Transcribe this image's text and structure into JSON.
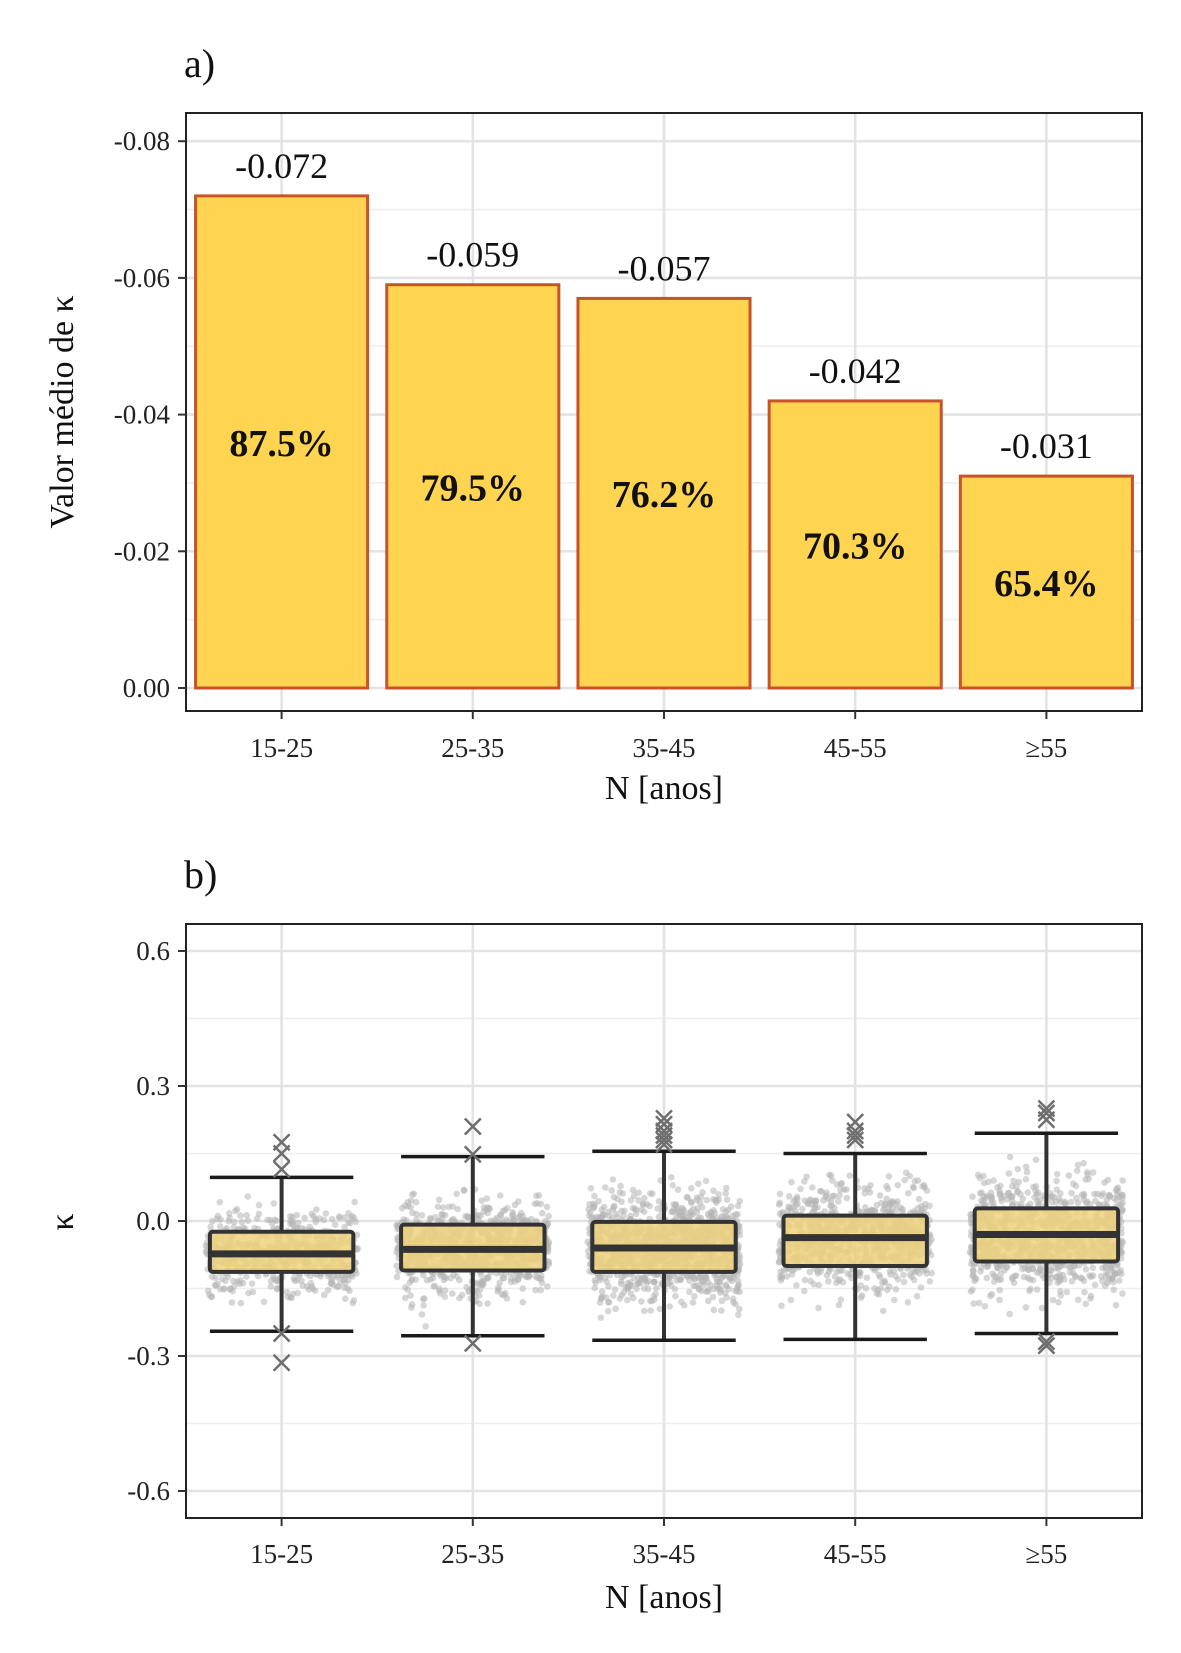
{
  "colors": {
    "bar_fill": "#FFD451",
    "bar_stroke": "#C8532A",
    "box_fill": "#F0D27C",
    "box_stroke": "#333333",
    "jitter": "#B5B5B5",
    "outlier": "#6E6E6E"
  },
  "chart_data": [
    {
      "panel": "a)",
      "type": "bar",
      "categories": [
        "15-25",
        "25-35",
        "35-45",
        "45-55",
        "≥55"
      ],
      "values": [
        -0.072,
        -0.059,
        -0.057,
        -0.042,
        -0.031
      ],
      "value_labels": [
        "-0.072",
        "-0.059",
        "-0.057",
        "-0.042",
        "-0.031"
      ],
      "percent_labels": [
        "87.5%",
        "79.5%",
        "76.2%",
        "70.3%",
        "65.4%"
      ],
      "xlabel": "N [anos]",
      "ylabel": "Valor médio de κ",
      "ylim": [
        0.0,
        -0.0838
      ],
      "y_reversed": true,
      "yticks": [
        0.0,
        -0.02,
        -0.04,
        -0.06,
        -0.08
      ],
      "ytick_labels": [
        "0.00",
        "-0.02",
        "-0.04",
        "-0.06",
        "-0.08"
      ],
      "grid": true
    },
    {
      "panel": "b)",
      "type": "box",
      "categories": [
        "15-25",
        "25-35",
        "35-45",
        "45-55",
        "≥55"
      ],
      "series": [
        {
          "whisker_low": -0.245,
          "q1": -0.113,
          "median": -0.073,
          "q3": -0.024,
          "whisker_high": 0.097,
          "outliers": [
            -0.25,
            -0.315,
            0.115,
            0.15,
            0.175
          ],
          "n_points": 550
        },
        {
          "whisker_low": -0.255,
          "q1": -0.11,
          "median": -0.063,
          "q3": -0.008,
          "whisker_high": 0.143,
          "outliers": [
            -0.272,
            0.148,
            0.21
          ],
          "n_points": 800
        },
        {
          "whisker_low": -0.265,
          "q1": -0.113,
          "median": -0.06,
          "q3": -0.002,
          "whisker_high": 0.155,
          "outliers": [
            0.17,
            0.18,
            0.19,
            0.2,
            0.215,
            0.228
          ],
          "n_points": 1100
        },
        {
          "whisker_low": -0.263,
          "q1": -0.1,
          "median": -0.037,
          "q3": 0.012,
          "whisker_high": 0.15,
          "outliers": [
            0.18,
            0.19,
            0.2,
            0.22
          ],
          "n_points": 750
        },
        {
          "whisker_low": -0.25,
          "q1": -0.09,
          "median": -0.03,
          "q3": 0.028,
          "whisker_high": 0.195,
          "outliers": [
            -0.268,
            -0.277,
            0.225,
            0.24,
            0.25
          ],
          "n_points": 900
        }
      ],
      "jitter_range": [
        -0.25,
        0.22
      ],
      "xlabel": "N [anos]",
      "ylabel": "κ",
      "ylim": [
        -0.66,
        0.66
      ],
      "yticks": [
        -0.6,
        -0.3,
        0.0,
        0.3,
        0.6
      ],
      "ytick_labels": [
        "-0.6",
        "-0.3",
        "0.0",
        "0.3",
        "0.6"
      ],
      "grid": true
    }
  ]
}
